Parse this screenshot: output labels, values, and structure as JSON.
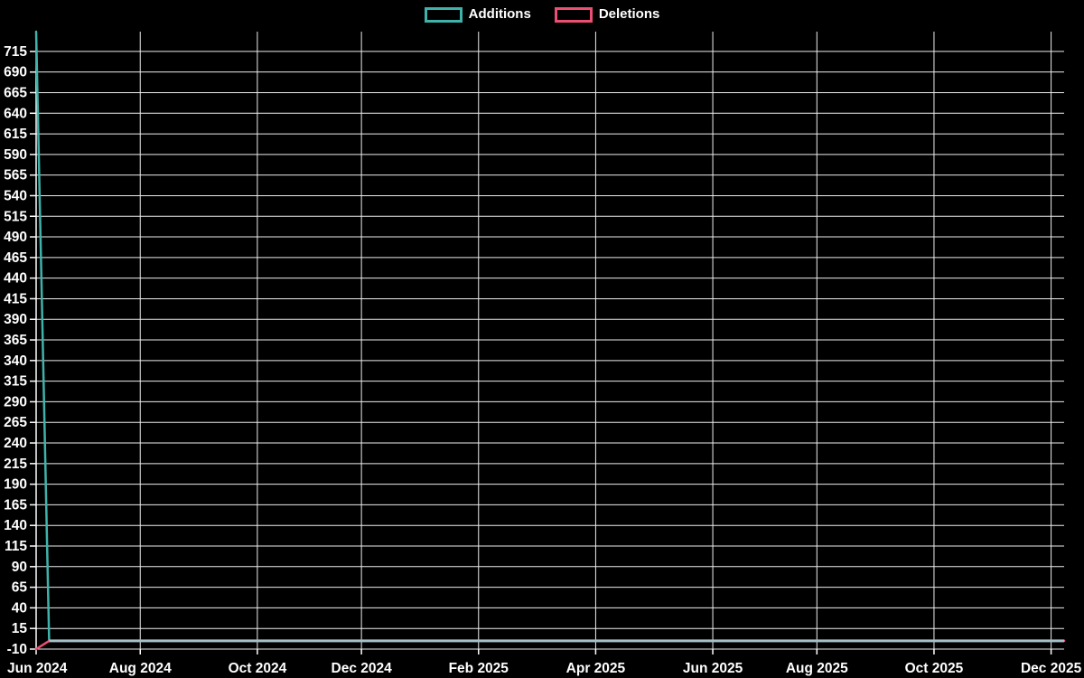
{
  "chart_data": {
    "type": "line",
    "title": "",
    "background": "#000000",
    "grid_color": "#ededed",
    "axis_color": "#ffffff",
    "text_color": "#ffffff",
    "legend_position": "top-center",
    "legend": [
      {
        "label": "Additions",
        "color": "#3fb3ab"
      },
      {
        "label": "Deletions",
        "color": "#ed4f72"
      }
    ],
    "x_axis": {
      "unit": "week",
      "total_weeks": 80,
      "tick_labels": [
        "Jun 2024",
        "Aug 2024",
        "Oct 2024",
        "Dec 2024",
        "Feb 2025",
        "Apr 2025",
        "Jun 2025",
        "Aug 2025",
        "Oct 2025",
        "Dec 2025"
      ],
      "tick_weeks": [
        0,
        8,
        17,
        25,
        34,
        43,
        52,
        60,
        69,
        78
      ]
    },
    "y_axis": {
      "min": -10,
      "max": 739,
      "tick_min": -10,
      "tick_max": 715,
      "tick_step": 25
    },
    "series": [
      {
        "name": "Additions",
        "color": "#3fb3ab",
        "points": [
          [
            0,
            739
          ],
          [
            1,
            0
          ],
          [
            79,
            0
          ]
        ]
      },
      {
        "name": "Deletions",
        "color": "#ed4f72",
        "points": [
          [
            0,
            -10
          ],
          [
            1,
            0
          ],
          [
            79,
            0
          ]
        ]
      }
    ],
    "overlap_segment": {
      "note": "Additions and Deletions are both 0 from week 1 to the end; the coincident strokes render as a pale steel-blue line",
      "color": "#a6c0c9",
      "points": [
        [
          1,
          0
        ],
        [
          79,
          0
        ]
      ]
    }
  }
}
